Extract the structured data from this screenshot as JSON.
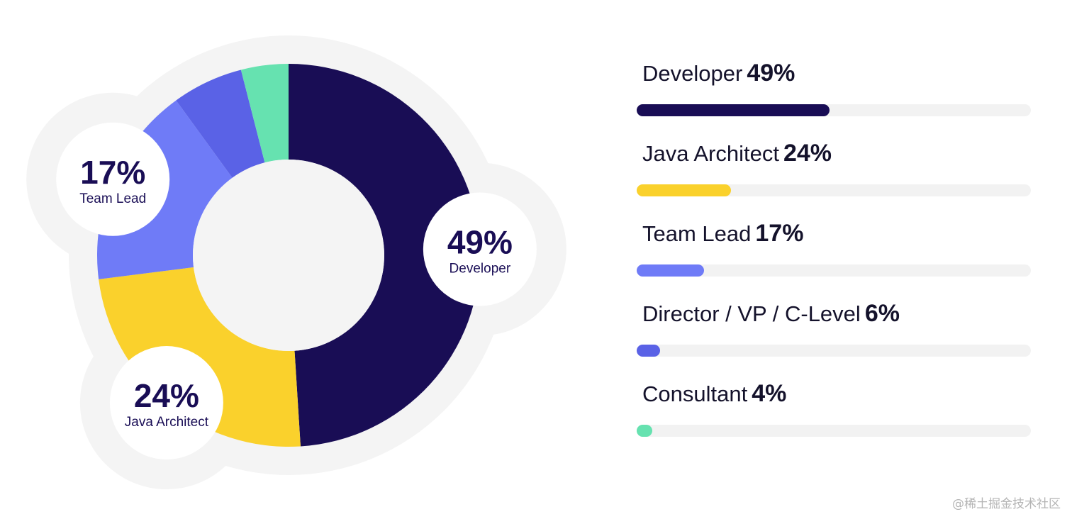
{
  "chart_data": {
    "type": "pie",
    "style": "donut",
    "categories": [
      "Developer",
      "Java Architect",
      "Team Lead",
      "Director / VP / C-Level",
      "Consultant"
    ],
    "values": [
      49,
      24,
      17,
      6,
      4
    ],
    "value_labels": [
      "49%",
      "24%",
      "17%",
      "6%",
      "4%"
    ],
    "colors": [
      "#190d55",
      "#fad12c",
      "#6f7bf7",
      "#5a62e6",
      "#66e2b0"
    ],
    "callouts": [
      {
        "category_index": 0,
        "percent": "49%",
        "label": "Developer"
      },
      {
        "category_index": 1,
        "percent": "24%",
        "label": "Java Architect"
      },
      {
        "category_index": 2,
        "percent": "17%",
        "label": "Team Lead"
      }
    ]
  },
  "legend": {
    "items": [
      {
        "label": "Developer",
        "percent": "49%",
        "value": 49,
        "color": "#190d55"
      },
      {
        "label": "Java Architect",
        "percent": "24%",
        "value": 24,
        "color": "#fad12c"
      },
      {
        "label": "Team Lead",
        "percent": "17%",
        "value": 17,
        "color": "#6f7bf7"
      },
      {
        "label": "Director / VP / C-Level",
        "percent": "6%",
        "value": 6,
        "color": "#5a62e6"
      },
      {
        "label": "Consultant",
        "percent": "4%",
        "value": 4,
        "color": "#66e2b0"
      }
    ]
  },
  "watermark": "@稀土掘金技术社区",
  "colors": {
    "halo": "#f4f4f4",
    "track": "#f2f2f2",
    "callout_text": "#190d55",
    "legend_text": "#14122b"
  }
}
